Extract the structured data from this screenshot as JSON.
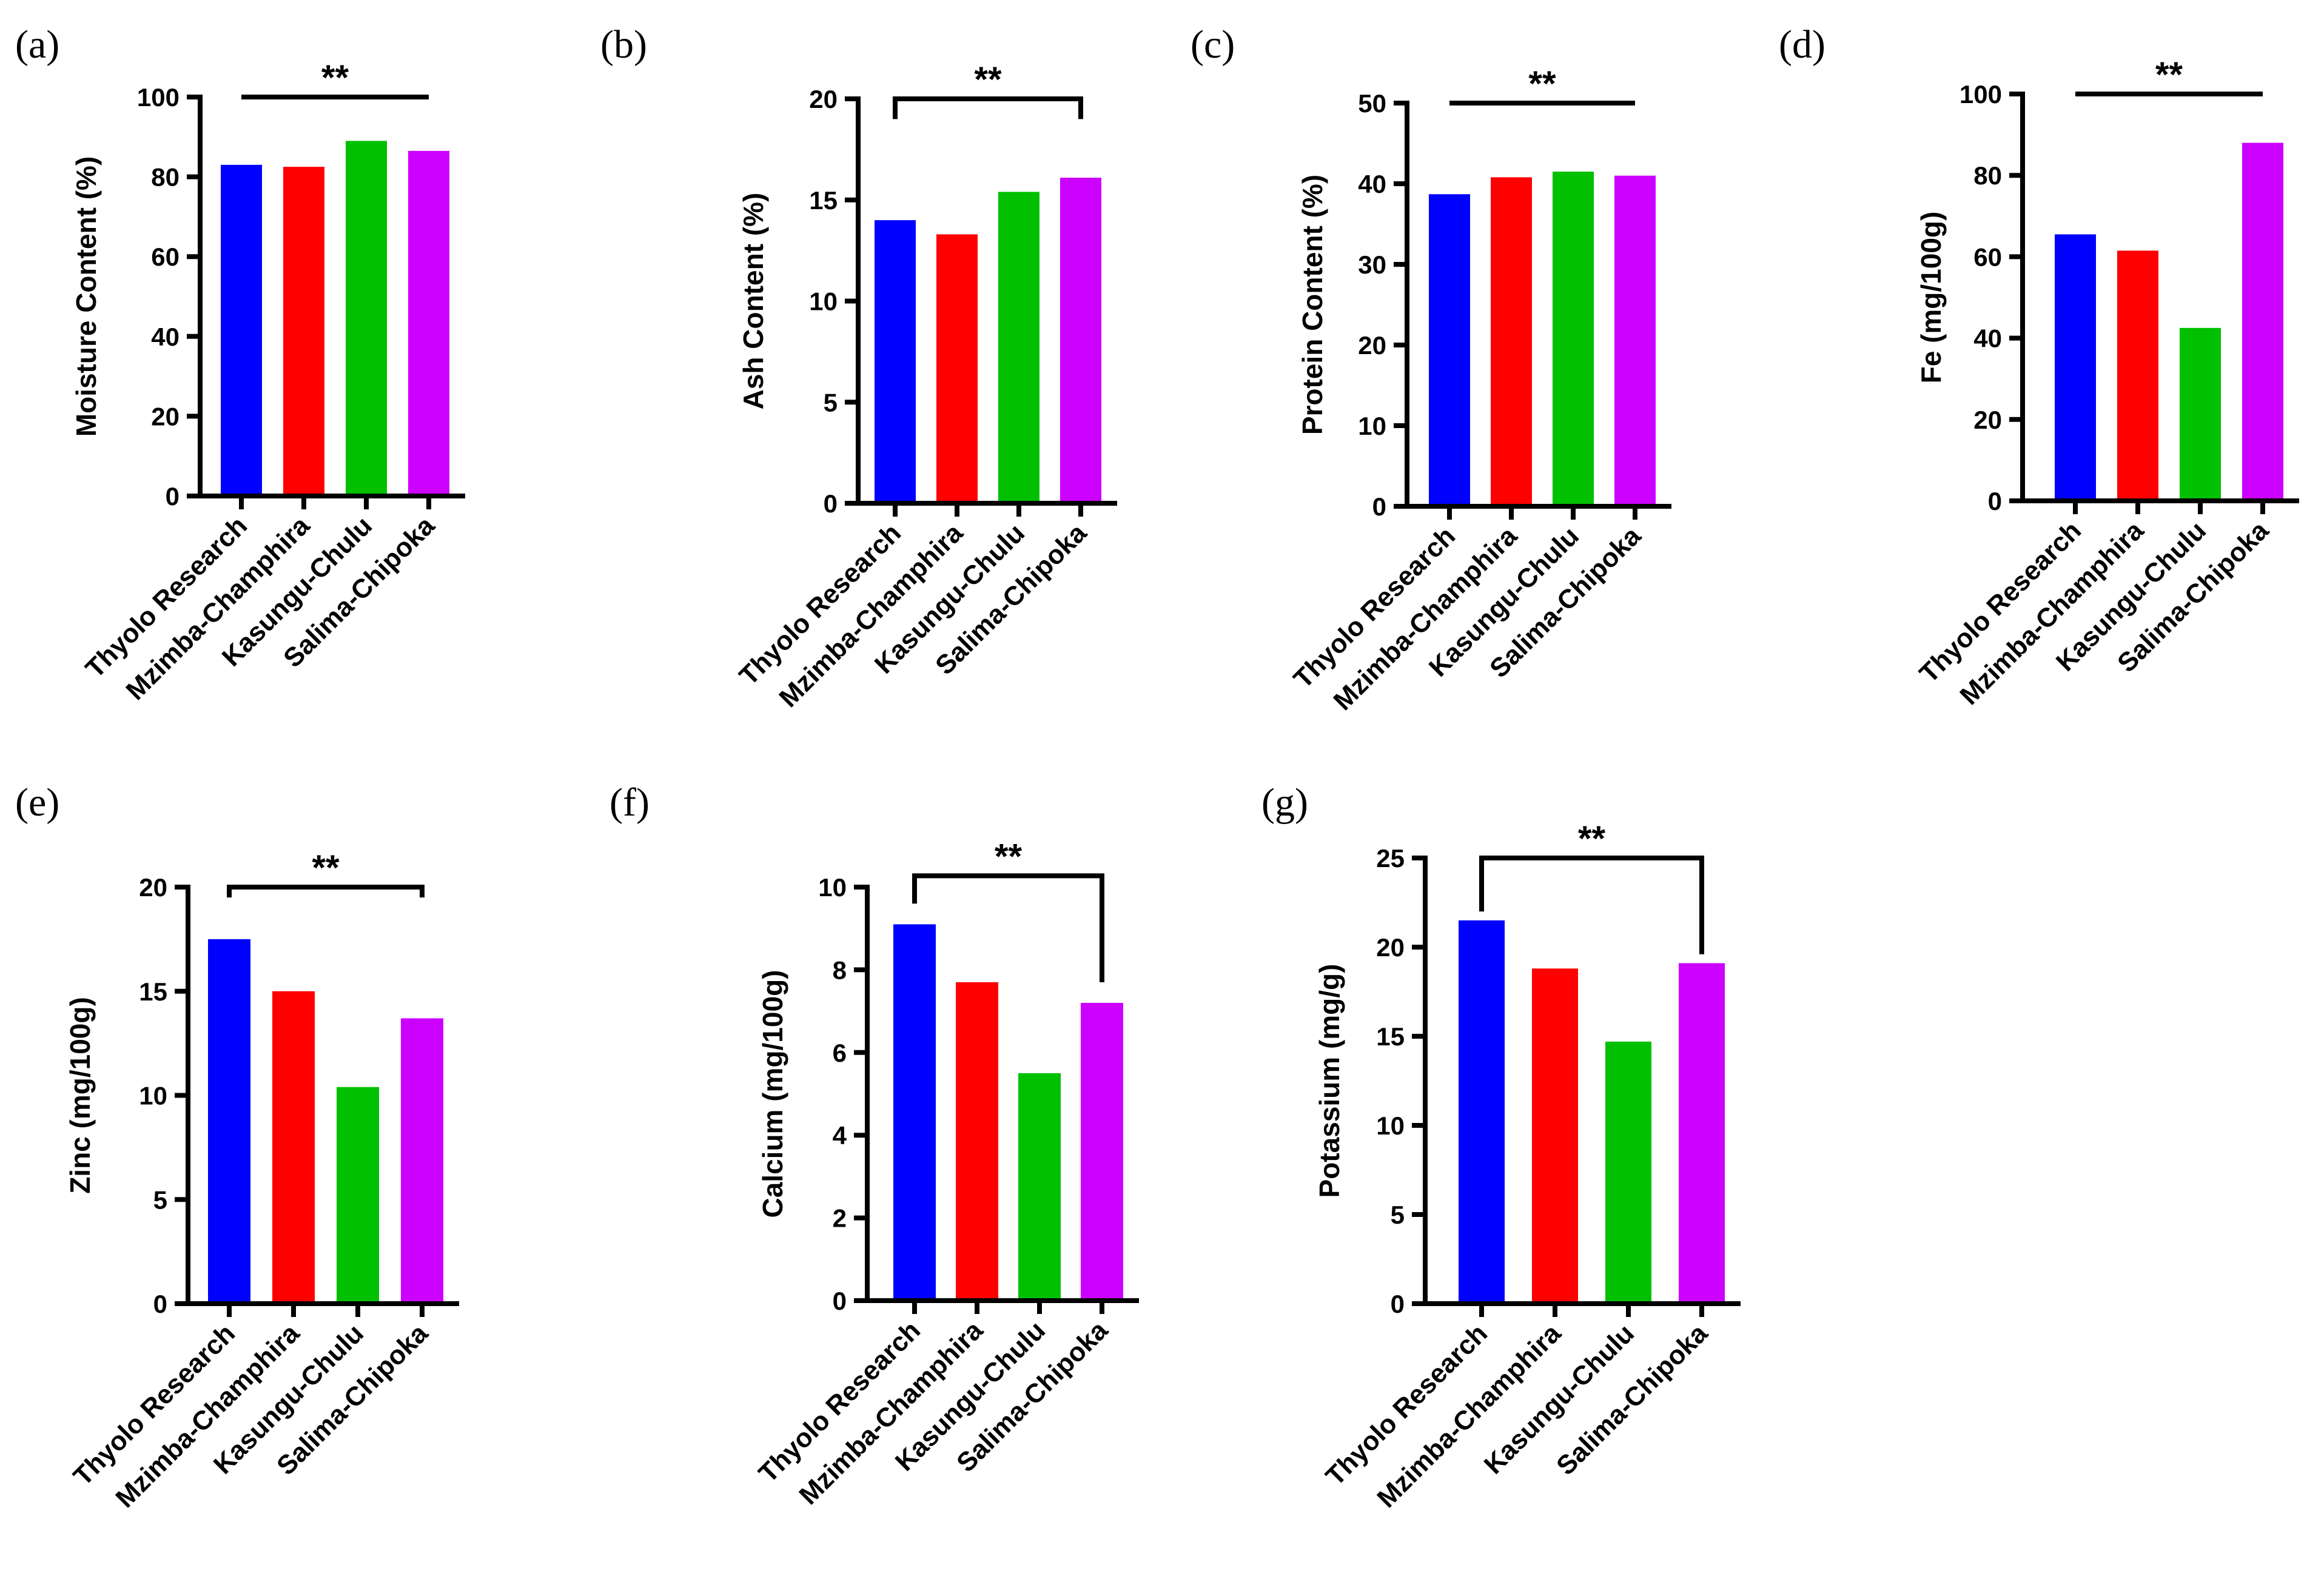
{
  "figure": {
    "colors": {
      "Thyolo Research": "#0000ff",
      "Mzimba-Champhira": "#ff0000",
      "Kasungu-Chulu": "#00c000",
      "Salima-Chipoka": "#cc00ff"
    }
  },
  "chart_data": [
    {
      "panel": "(a)",
      "type": "bar",
      "categories": [
        "Thyolo Research",
        "Mzimba-Champhira",
        "Kasungu-Chulu",
        "Salima-Chipoka"
      ],
      "values": [
        83,
        82.5,
        89,
        86.5
      ],
      "ylabel": "Moisture Content (%)",
      "ylim": [
        0,
        100
      ],
      "yticks": [
        0,
        20,
        40,
        60,
        80,
        100
      ],
      "significance": "**",
      "bracket_ends": [
        100,
        100
      ]
    },
    {
      "panel": "(b)",
      "type": "bar",
      "categories": [
        "Thyolo Research",
        "Mzimba-Champhira",
        "Kasungu-Chulu",
        "Salima-Chipoka"
      ],
      "values": [
        14,
        13.3,
        15.4,
        16.1
      ],
      "ylabel": "Ash Content (%)",
      "ylim": [
        0,
        20
      ],
      "yticks": [
        0,
        5,
        10,
        15,
        20
      ],
      "significance": "**",
      "bracket_ends": [
        19,
        19
      ]
    },
    {
      "panel": "(c)",
      "type": "bar",
      "categories": [
        "Thyolo Research",
        "Mzimba-Champhira",
        "Kasungu-Chulu",
        "Salima-Chipoka"
      ],
      "values": [
        38.7,
        40.8,
        41.5,
        41
      ],
      "ylabel": "Protein Content (%)",
      "ylim": [
        0,
        50
      ],
      "yticks": [
        0,
        10,
        20,
        30,
        40,
        50
      ],
      "significance": "**",
      "bracket_ends": [
        50,
        50
      ]
    },
    {
      "panel": "(d)",
      "type": "bar",
      "categories": [
        "Thyolo Research",
        "Mzimba-Champhira",
        "Kasungu-Chulu",
        "Salima-Chipoka"
      ],
      "values": [
        65.5,
        61.5,
        42.5,
        88
      ],
      "ylabel": "Fe (mg/100g)",
      "ylim": [
        0,
        100
      ],
      "yticks": [
        0,
        20,
        40,
        60,
        80,
        100
      ],
      "significance": "**",
      "bracket_ends": [
        100,
        100
      ]
    },
    {
      "panel": "(e)",
      "type": "bar",
      "categories": [
        "Thyolo Research",
        "Mzimba-Champhira",
        "Kasungu-Chulu",
        "Salima-Chipoka"
      ],
      "values": [
        17.5,
        15,
        10.4,
        13.7
      ],
      "ylabel": "Zinc (mg/100g)",
      "ylim": [
        0,
        20
      ],
      "yticks": [
        0,
        5,
        10,
        15,
        20
      ],
      "significance": "**",
      "bracket_ends": [
        19.5,
        19.5
      ]
    },
    {
      "panel": "(f)",
      "type": "bar",
      "categories": [
        "Thyolo Research",
        "Mzimba-Champhira",
        "Kasungu-Chulu",
        "Salima-Chipoka"
      ],
      "values": [
        9.1,
        7.7,
        5.5,
        7.2
      ],
      "ylabel": "Calcium (mg/100g)",
      "ylim": [
        0,
        10
      ],
      "yticks": [
        0,
        2,
        4,
        6,
        8,
        10
      ],
      "significance": "**",
      "bracket_ends": [
        9.6,
        7.7
      ]
    },
    {
      "panel": "(g)",
      "type": "bar",
      "categories": [
        "Thyolo Research",
        "Mzimba-Champhira",
        "Kasungu-Chulu",
        "Salima-Chipoka"
      ],
      "values": [
        21.5,
        18.8,
        14.7,
        19.1
      ],
      "ylabel": "Potassium (mg/g)",
      "ylim": [
        0,
        25
      ],
      "yticks": [
        0,
        5,
        10,
        15,
        20,
        25
      ],
      "significance": "**",
      "bracket_ends": [
        22,
        19.6
      ]
    }
  ]
}
